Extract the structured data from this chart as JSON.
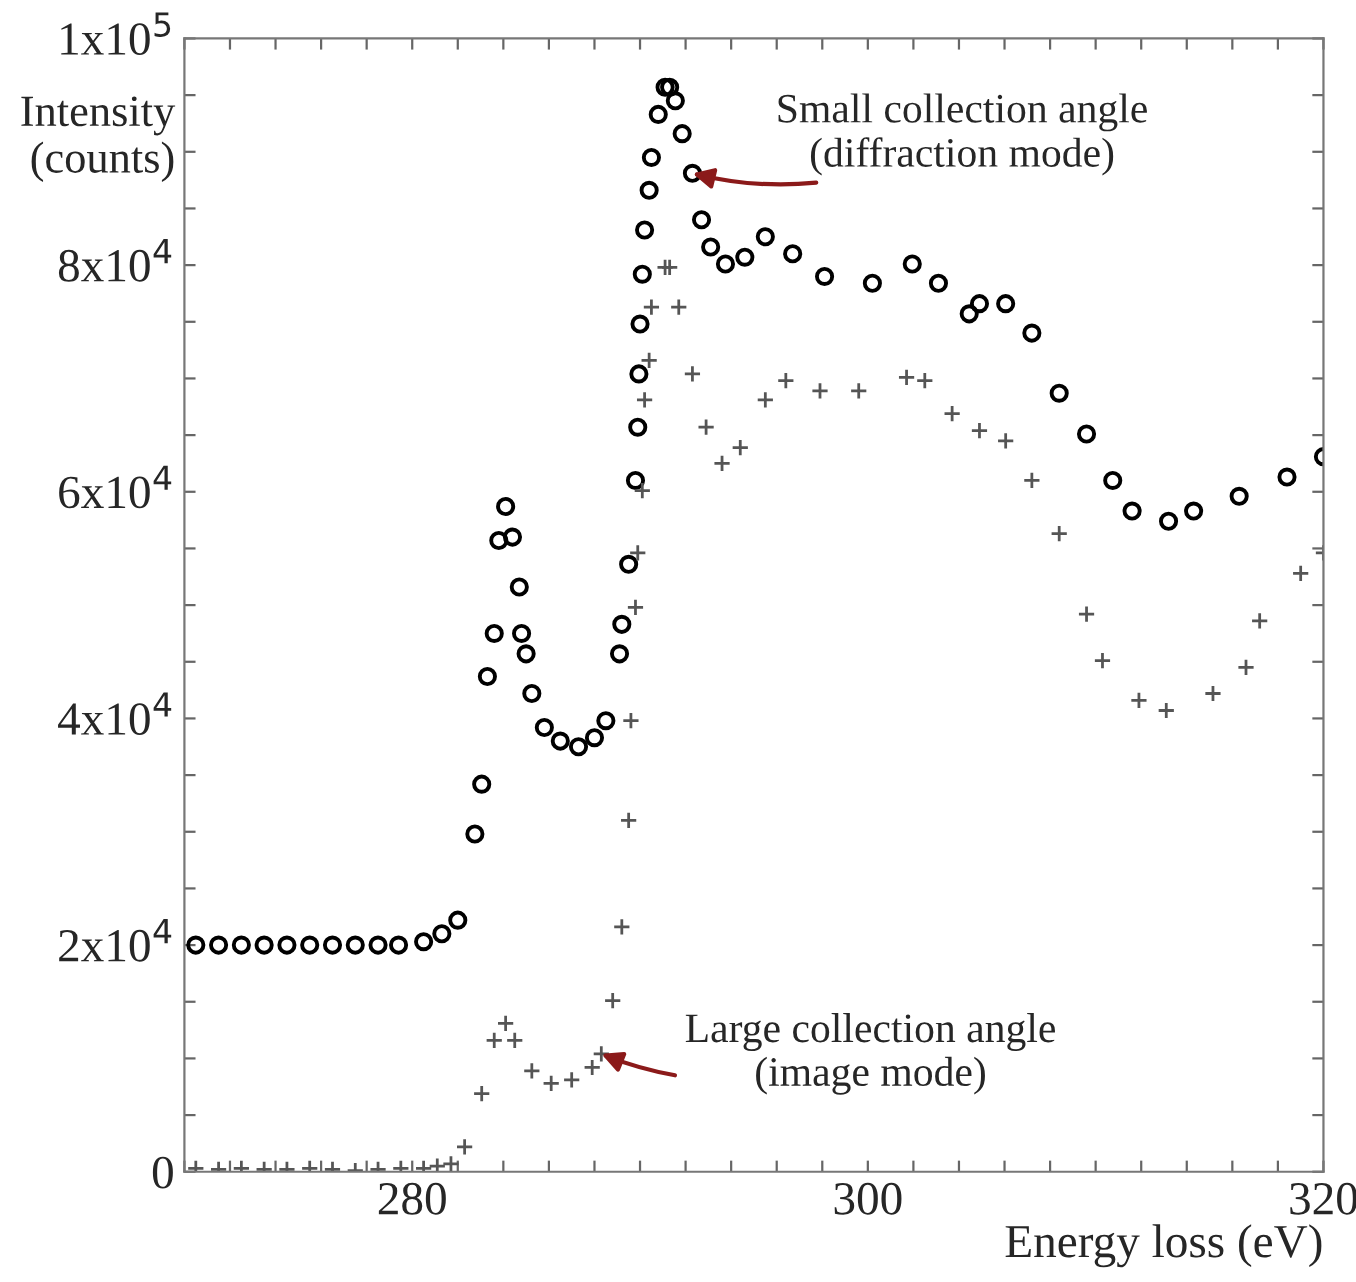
{
  "chart_data": {
    "type": "scatter",
    "xlabel": "Energy loss (eV)",
    "ylabel": "Intensity\n(counts)",
    "xlim": [
      270,
      320
    ],
    "ylim": [
      0,
      100000
    ],
    "xticks": [
      {
        "value": 270,
        "label": null
      },
      {
        "value": 272,
        "label": null
      },
      {
        "value": 274,
        "label": null
      },
      {
        "value": 276,
        "label": null
      },
      {
        "value": 278,
        "label": null
      },
      280,
      {
        "value": 282,
        "label": null
      },
      {
        "value": 284,
        "label": null
      },
      {
        "value": 286,
        "label": null
      },
      {
        "value": 288,
        "label": null
      },
      {
        "value": 290,
        "label": null
      },
      {
        "value": 292,
        "label": null
      },
      {
        "value": 294,
        "label": null
      },
      {
        "value": 296,
        "label": null
      },
      {
        "value": 298,
        "label": null
      },
      300,
      {
        "value": 302,
        "label": null
      },
      {
        "value": 304,
        "label": null
      },
      {
        "value": 306,
        "label": null
      },
      {
        "value": 308,
        "label": null
      },
      {
        "value": 310,
        "label": null
      },
      {
        "value": 312,
        "label": null
      },
      {
        "value": 314,
        "label": null
      },
      {
        "value": 316,
        "label": null
      },
      {
        "value": 318,
        "label": null
      },
      320
    ],
    "yticks": [
      0,
      {
        "value": 5000,
        "label": null
      },
      {
        "value": 10000,
        "label": null
      },
      {
        "value": 15000,
        "label": null
      },
      {
        "value": 20000,
        "label": "2x10$^{4}$"
      },
      {
        "value": 25000,
        "label": null
      },
      {
        "value": 30000,
        "label": null
      },
      {
        "value": 35000,
        "label": null
      },
      {
        "value": 40000,
        "label": "4x10$^{4}$"
      },
      {
        "value": 45000,
        "label": null
      },
      {
        "value": 50000,
        "label": null
      },
      {
        "value": 55000,
        "label": null
      },
      {
        "value": 60000,
        "label": "6x10$^{4}$"
      },
      {
        "value": 65000,
        "label": null
      },
      {
        "value": 70000,
        "label": null
      },
      {
        "value": 75000,
        "label": null
      },
      {
        "value": 80000,
        "label": "8x10$^{4}$"
      },
      {
        "value": 85000,
        "label": null
      },
      {
        "value": 90000,
        "label": null
      },
      {
        "value": 95000,
        "label": null
      },
      {
        "value": 100000,
        "label": "1x10$^{5}$"
      }
    ],
    "grid": false,
    "legend": false,
    "series": [
      {
        "color": "#000000",
        "marker": "circle",
        "x": [
          270.5,
          271.5,
          272.5,
          273.5,
          274.5,
          275.5,
          276.5,
          277.5,
          278.5,
          279.4,
          280.5,
          281.3,
          282.0,
          282.75,
          283.05,
          283.3,
          283.6,
          283.8,
          284.1,
          284.4,
          284.7,
          284.8,
          285.0,
          285.25,
          285.8,
          286.5,
          287.3,
          288.0,
          288.5,
          289.1,
          289.2,
          289.5,
          289.8,
          289.9,
          289.95,
          290.0,
          290.1,
          290.2,
          290.4,
          290.5,
          290.8,
          291.1,
          291.3,
          291.55,
          291.85,
          292.3,
          292.7,
          293.1,
          293.75,
          294.6,
          295.5,
          296.7,
          298.1,
          300.2,
          301.95,
          303.1,
          304.45,
          304.9,
          306.05,
          307.2,
          308.4,
          309.6,
          310.75,
          311.6,
          313.2,
          314.3,
          316.3,
          318.4,
          320.0
        ],
        "values": [
          20000,
          20000,
          20000,
          20000,
          20000,
          20000,
          20000,
          20000,
          20000,
          20000,
          20300,
          21000,
          22200,
          29800,
          34200,
          43700,
          47500,
          55700,
          58700,
          56000,
          51600,
          47500,
          45700,
          42200,
          39200,
          38000,
          37500,
          38300,
          39800,
          45700,
          48300,
          53600,
          61000,
          65700,
          70400,
          74800,
          79200,
          83100,
          86600,
          89500,
          93300,
          95700,
          95700,
          94500,
          91600,
          88100,
          84000,
          81600,
          80100,
          80700,
          82500,
          81000,
          79000,
          78400,
          80100,
          78400,
          75700,
          76600,
          76600,
          74000,
          68700,
          65100,
          61000,
          58300,
          57400,
          58300,
          59600,
          61300,
          63100
        ]
      },
      {
        "color": "#555555",
        "marker": "cross",
        "x": [
          270.5,
          271.5,
          272.5,
          273.5,
          274.5,
          275.5,
          276.5,
          277.5,
          278.5,
          279.5,
          280.5,
          281.1,
          281.7,
          282.3,
          283.05,
          283.6,
          284.1,
          284.5,
          285.25,
          286.1,
          287.0,
          287.9,
          288.3,
          288.8,
          289.2,
          289.5,
          289.6,
          289.8,
          289.9,
          290.1,
          290.2,
          290.4,
          290.5,
          291.1,
          291.3,
          291.7,
          292.3,
          292.9,
          293.6,
          294.4,
          295.5,
          296.4,
          297.9,
          299.6,
          301.7,
          302.5,
          303.7,
          304.9,
          306.05,
          307.2,
          308.4,
          309.6,
          310.3,
          311.9,
          313.1,
          315.15,
          316.6,
          317.2,
          319.0,
          320.0
        ],
        "values": [
          300,
          200,
          300,
          200,
          200,
          300,
          200,
          100,
          200,
          300,
          300,
          500,
          700,
          2200,
          6900,
          11600,
          13100,
          11600,
          8900,
          7800,
          8100,
          9200,
          10400,
          15100,
          21600,
          31000,
          39800,
          49800,
          54600,
          60100,
          68100,
          71600,
          76300,
          79800,
          79800,
          76300,
          70400,
          65700,
          62500,
          63900,
          68100,
          69800,
          68900,
          68900,
          70100,
          69800,
          66900,
          65400,
          64500,
          61000,
          56300,
          49200,
          45100,
          41600,
          40700,
          42200,
          44500,
          48600,
          52800,
          54600
        ]
      }
    ],
    "annotations": [
      {
        "text": "Small collection angle\n(diffraction mode)",
        "x": 292.3,
        "y": 88100
      },
      {
        "text": "Large collection angle\n(image mode)",
        "x": 288.3,
        "y": 10400
      }
    ]
  }
}
